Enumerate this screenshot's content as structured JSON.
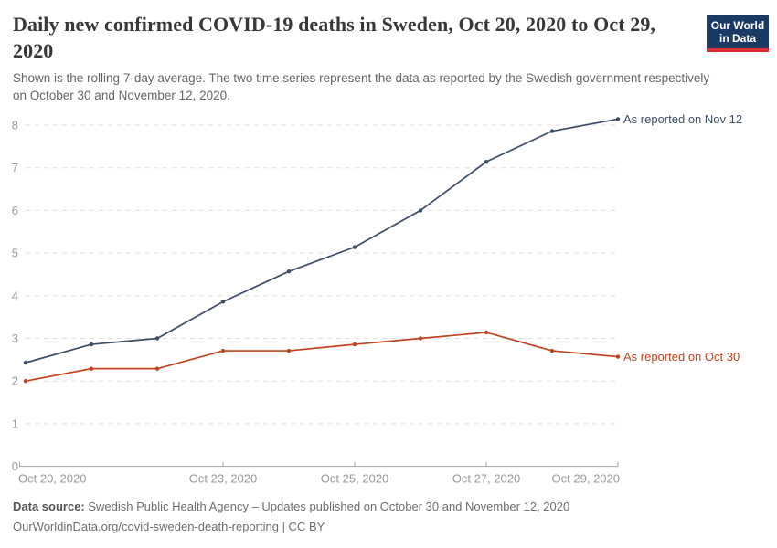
{
  "header": {
    "title": "Daily new confirmed COVID-19 deaths in Sweden, Oct 20, 2020 to Oct 29, 2020",
    "subtitle": "Shown is the rolling 7-day average. The two time series represent the data as reported by the Swedish government respectively on October 30 and November 12, 2020.",
    "logo": {
      "line1": "Our World",
      "line2": "in Data"
    }
  },
  "chart_data": {
    "type": "line",
    "title": "Daily new confirmed COVID-19 deaths in Sweden",
    "x": [
      "Oct 20, 2020",
      "Oct 21, 2020",
      "Oct 22, 2020",
      "Oct 23, 2020",
      "Oct 24, 2020",
      "Oct 25, 2020",
      "Oct 26, 2020",
      "Oct 27, 2020",
      "Oct 28, 2020",
      "Oct 29, 2020"
    ],
    "x_tick_indices": [
      0,
      3,
      5,
      7,
      9
    ],
    "x_tick_labels": [
      "Oct 20, 2020",
      "Oct 23, 2020",
      "Oct 25, 2020",
      "Oct 27, 2020",
      "Oct 29, 2020"
    ],
    "yticks": [
      0,
      1,
      2,
      3,
      4,
      5,
      6,
      7,
      8
    ],
    "ylim": [
      0,
      8.5
    ],
    "grid": "horizontal-dashed",
    "legend_position": "end-of-line-labels",
    "series": [
      {
        "name": "As reported on Nov 12",
        "color": "#3c4e66",
        "values": [
          2.43,
          2.86,
          3.0,
          3.86,
          4.57,
          5.14,
          6.0,
          7.14,
          7.86,
          8.14
        ]
      },
      {
        "name": "As reported on Oct 30",
        "color": "#c1431f",
        "values": [
          2.0,
          2.29,
          2.29,
          2.71,
          2.71,
          2.86,
          3.0,
          3.14,
          2.71,
          2.57
        ]
      }
    ],
    "axis_color": "#a3a3a3",
    "grid_color": "#dddddd",
    "tick_label_color": "#999999"
  },
  "footer": {
    "source_label": "Data source:",
    "source_text": " Swedish Public Health Agency – Updates published on October 30 and November 12, 2020",
    "link_line": "OurWorldinData.org/covid-sweden-death-reporting | CC BY"
  }
}
